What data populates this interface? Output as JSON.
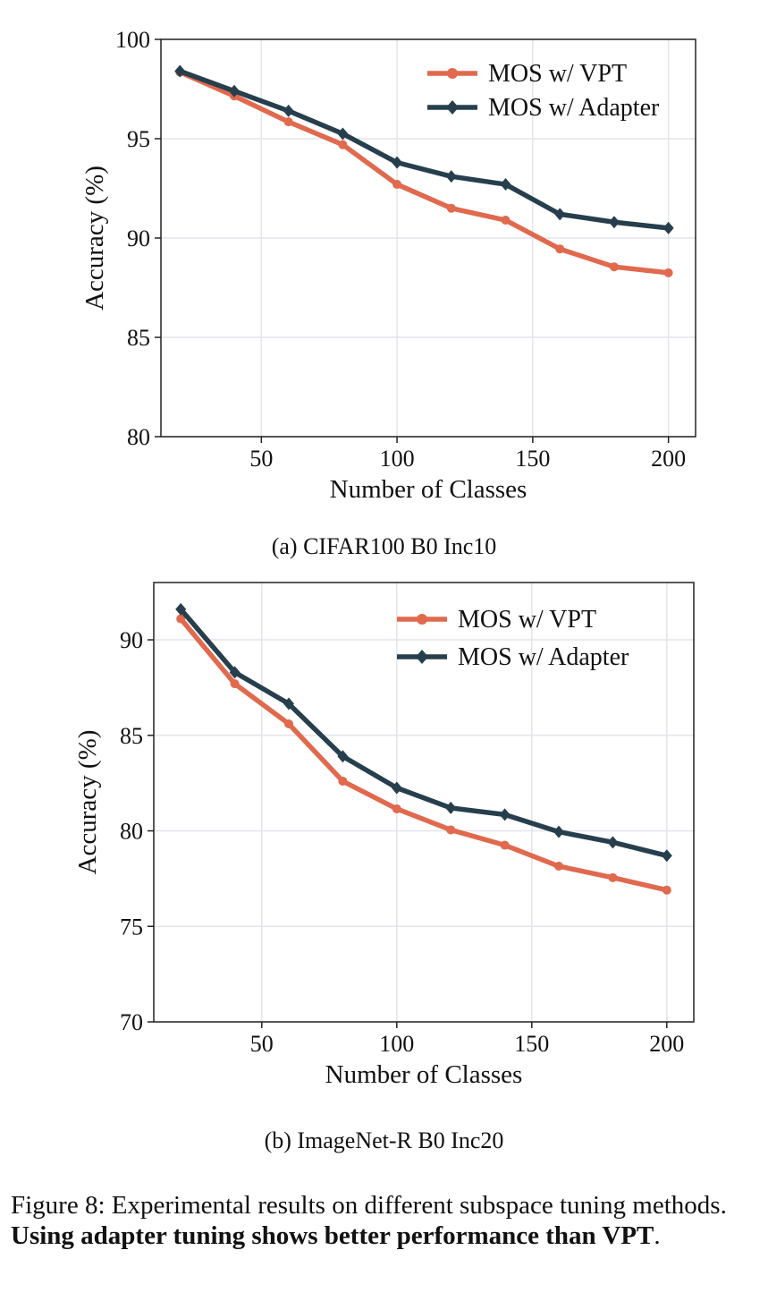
{
  "chart_data": [
    {
      "type": "line",
      "subcaption": "(a) CIFAR100 B0 Inc10",
      "xlabel": "Number of Classes",
      "ylabel": "Accuracy (%)",
      "xlim": [
        13,
        210
      ],
      "ylim": [
        80,
        100
      ],
      "xticks": [
        50,
        100,
        150,
        200
      ],
      "yticks": [
        80,
        85,
        90,
        95,
        100
      ],
      "grid": true,
      "legend_position": "top-right",
      "x": [
        20,
        40,
        60,
        80,
        100,
        120,
        140,
        160,
        180,
        200
      ],
      "series": [
        {
          "name": "MOS w/ VPT",
          "color": "#e0694e",
          "marker": "circle",
          "values": [
            98.35,
            97.15,
            95.85,
            94.7,
            92.7,
            91.5,
            90.9,
            89.45,
            88.55,
            88.25
          ]
        },
        {
          "name": "MOS w/ Adapter",
          "color": "#273f4d",
          "marker": "diamond",
          "values": [
            98.4,
            97.4,
            96.4,
            95.25,
            93.8,
            93.1,
            92.7,
            91.2,
            90.8,
            90.5
          ]
        }
      ]
    },
    {
      "type": "line",
      "subcaption": "(b) ImageNet-R B0 Inc20",
      "xlabel": "Number of Classes",
      "ylabel": "Accuracy (%)",
      "xlim": [
        10,
        210
      ],
      "ylim": [
        70,
        93
      ],
      "xticks": [
        50,
        100,
        150,
        200
      ],
      "yticks": [
        70,
        75,
        80,
        85,
        90
      ],
      "grid": true,
      "legend_position": "top-right",
      "x": [
        20,
        40,
        60,
        80,
        100,
        120,
        140,
        160,
        180,
        200
      ],
      "series": [
        {
          "name": "MOS w/ VPT",
          "color": "#e0694e",
          "marker": "circle",
          "values": [
            91.1,
            87.7,
            85.6,
            82.6,
            81.15,
            80.05,
            79.25,
            78.15,
            77.55,
            76.9
          ]
        },
        {
          "name": "MOS w/ Adapter",
          "color": "#273f4d",
          "marker": "diamond",
          "values": [
            91.6,
            88.3,
            86.65,
            83.9,
            82.25,
            81.2,
            80.85,
            79.95,
            79.4,
            78.7
          ]
        }
      ]
    }
  ],
  "caption": {
    "prefix": "Figure 8: Experimental results on different subspace tuning methods. ",
    "bold": "Using adapter tuning shows better performance than VPT",
    "suffix": "."
  }
}
